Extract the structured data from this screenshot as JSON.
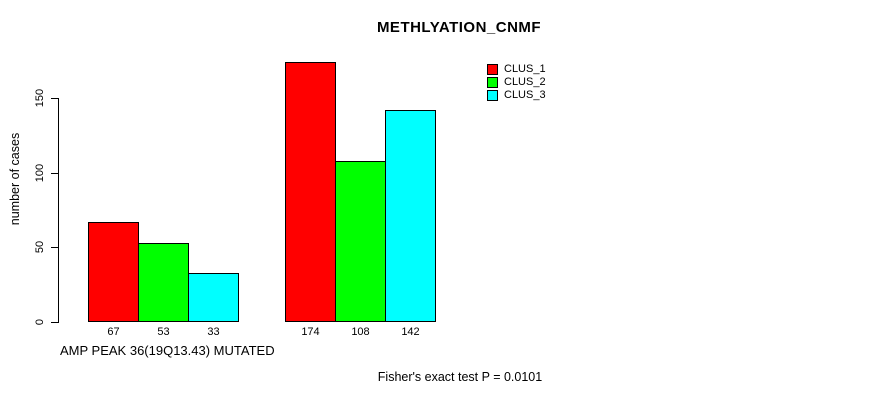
{
  "chart_data": {
    "type": "bar",
    "title": "METHLYATION_CNMF",
    "ylabel": "number of cases",
    "xlabel": "AMP PEAK 36(19Q13.43) MUTATED",
    "annotation": "Fisher's exact test P = 0.0101",
    "yticks": [
      0,
      50,
      100,
      150
    ],
    "ylim": [
      0,
      150
    ],
    "grid": false,
    "legend_position": "top-right",
    "groups": [
      "group-1",
      "group-2"
    ],
    "series": [
      {
        "name": "CLUS_1",
        "color": "#ff0000",
        "values": [
          67,
          174
        ]
      },
      {
        "name": "CLUS_2",
        "color": "#00ff00",
        "values": [
          53,
          108
        ]
      },
      {
        "name": "CLUS_3",
        "color": "#00ffff",
        "values": [
          33,
          142
        ]
      }
    ],
    "bar_labels": [
      [
        67,
        53,
        33
      ],
      [
        174,
        108,
        142
      ]
    ]
  }
}
